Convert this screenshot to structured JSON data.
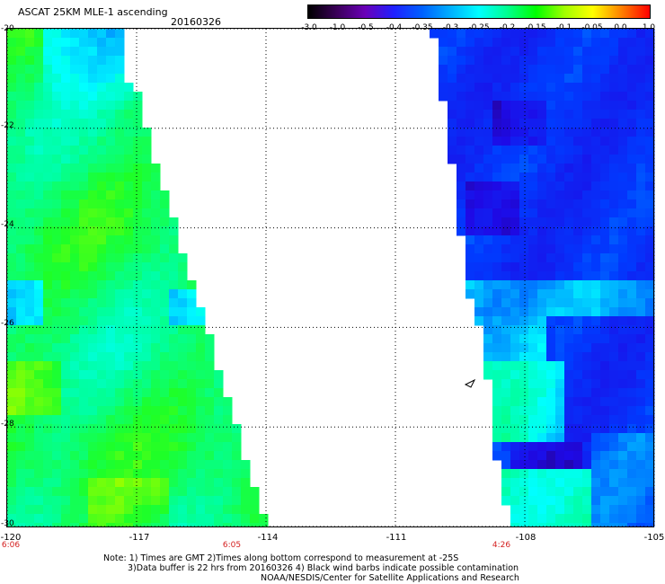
{
  "header": {
    "title": "ASCAT 25KM MLE-1 ascending",
    "date": "20160326"
  },
  "colorbar": {
    "labels": [
      "-3.0",
      "-1.0",
      "-0.5",
      "-0.4",
      "-0.35",
      "-0.3",
      "-0.25",
      "-0.2",
      "-0.15",
      "-0.1",
      "-0.05",
      "0.0",
      "1.0"
    ],
    "colors": [
      "#000000",
      "#3a0058",
      "#6a00b8",
      "#2020ff",
      "#0060ff",
      "#00b0ff",
      "#00ffff",
      "#00ff90",
      "#00ff00",
      "#a0ff00",
      "#ffff00",
      "#ff8000",
      "#ff0000"
    ]
  },
  "axes": {
    "latitude_labels": [
      "-20",
      "-22",
      "-24",
      "-26",
      "-28",
      "-30"
    ],
    "longitude_labels": [
      "-120",
      "-117",
      "-114",
      "-111",
      "-108",
      "-105"
    ],
    "lat_range": [
      -30,
      -20
    ],
    "lon_range": [
      -120,
      -105
    ]
  },
  "swath_times": {
    "left": "6:06",
    "middle": "6:05",
    "right": "4:26"
  },
  "notes": {
    "line1": "Note: 1) Times are GMT 2)Times along bottom correspond to measurement at -25S",
    "line2": "3)Data buffer is 22 hrs from 20160326 4) Black wind barbs indicate possible contamination",
    "line3": "NOAA/NESDIS/Center for Satellite Applications and Research"
  }
}
